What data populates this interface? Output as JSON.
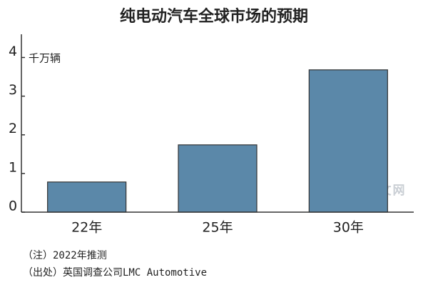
{
  "chart_data": {
    "type": "bar",
    "title": "纯电动汽车全球市场的预期",
    "y_unit": "千万辆",
    "categories": [
      "22年",
      "25年",
      "30年"
    ],
    "values": [
      0.78,
      1.74,
      3.68
    ],
    "color": "#5b88a9",
    "ylim": [
      0,
      4.6
    ],
    "yticks": [
      0,
      1,
      2,
      3,
      4
    ],
    "grid": false,
    "notes": [
      "（注）2022年推测",
      "（出处）英国调查公司LMC Automotive"
    ],
    "watermark": "日经中文网"
  }
}
